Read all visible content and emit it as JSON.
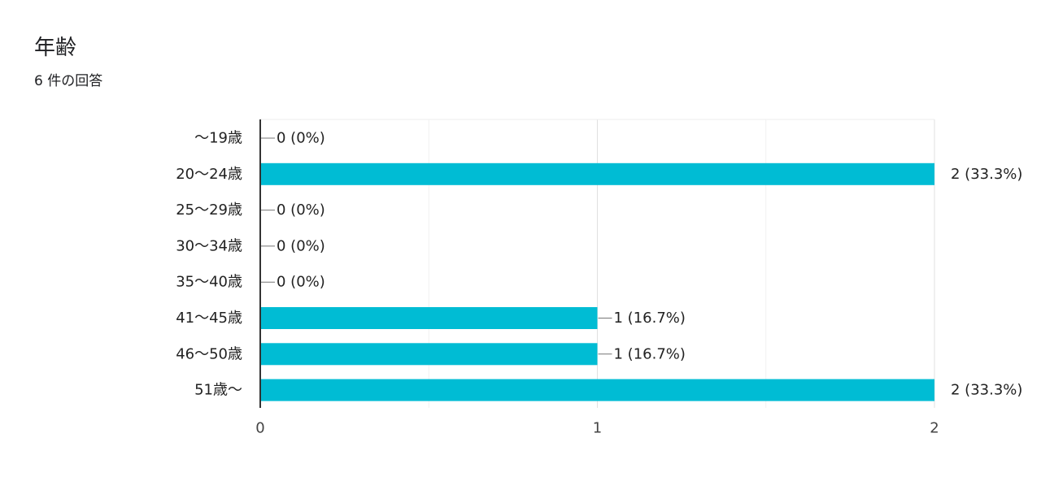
{
  "header": {
    "title": "年齢",
    "response_count": "6 件の回答"
  },
  "chart_data": {
    "type": "bar",
    "orientation": "horizontal",
    "categories": [
      "～19歳",
      "20～24歳",
      "25～29歳",
      "30～34歳",
      "35～40歳",
      "41～45歳",
      "46～50歳",
      "51歳～"
    ],
    "values": [
      0,
      2,
      0,
      0,
      0,
      1,
      1,
      2
    ],
    "data_labels": [
      "0 (0%)",
      "2 (33.3%)",
      "0 (0%)",
      "0 (0%)",
      "0 (0%)",
      "1 (16.7%)",
      "1 (16.7%)",
      "2 (33.3%)"
    ],
    "xlim": [
      0,
      2
    ],
    "x_ticks": [
      "0",
      "1",
      "2"
    ],
    "grid": true,
    "bar_color": "#00bcd4",
    "title": "",
    "xlabel": "",
    "ylabel": ""
  }
}
